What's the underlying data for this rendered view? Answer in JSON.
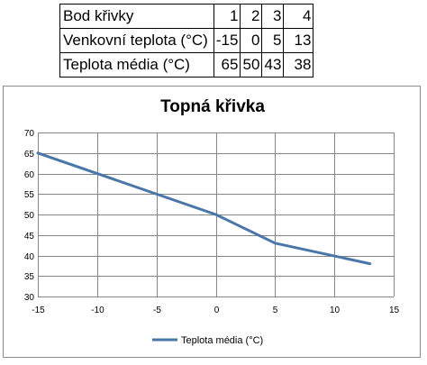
{
  "table": {
    "rows": [
      {
        "label": "Bod křivky",
        "values": [
          "1",
          "2",
          "3",
          "4"
        ]
      },
      {
        "label": "Venkovní teplota (°C)",
        "values": [
          "-15",
          "0",
          "5",
          "13"
        ]
      },
      {
        "label": "Teplota média (°C)",
        "values": [
          "65",
          "50",
          "43",
          "38"
        ]
      }
    ]
  },
  "chart_data": {
    "type": "line",
    "title": "Topná křivka",
    "xlabel": "",
    "ylabel": "",
    "x": [
      -15,
      0,
      5,
      13
    ],
    "series": [
      {
        "name": "Teplota média (°C)",
        "values": [
          65,
          50,
          43,
          38
        ],
        "color": "#4a76a8"
      }
    ],
    "xlim": [
      -15,
      15
    ],
    "ylim": [
      30,
      70
    ],
    "x_ticks": [
      -15,
      -10,
      -5,
      0,
      5,
      10,
      15
    ],
    "y_ticks": [
      30,
      35,
      40,
      45,
      50,
      55,
      60,
      65,
      70
    ],
    "grid": "vertical and horizontal",
    "legend": "bottom"
  },
  "colors": {
    "series_line": "#4a76a8",
    "gridline": "#868686",
    "frame": "#8c8c8c"
  }
}
